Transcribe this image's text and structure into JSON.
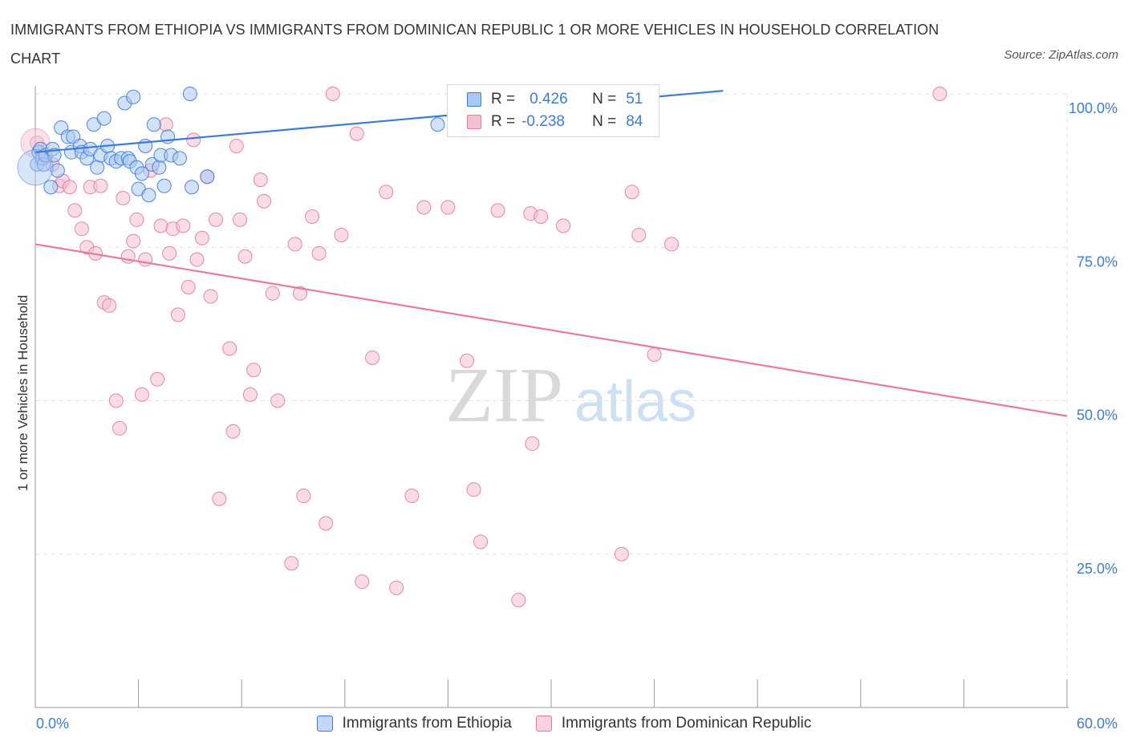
{
  "title": "IMMIGRANTS FROM ETHIOPIA VS IMMIGRANTS FROM DOMINICAN REPUBLIC 1 OR MORE VEHICLES IN HOUSEHOLD CORRELATION CHART",
  "source": "Source: ZipAtlas.com",
  "watermark": {
    "zip": "ZIP",
    "atlas": "atlas"
  },
  "colors": {
    "blue": "#3d7bd9",
    "blue_fill": "#a9c8f2",
    "pink": "#e87aa2",
    "pink_fill": "#f5bfd2",
    "grid": "#e3e3e3",
    "tick_label": "#3d7bd9"
  },
  "legend": {
    "r_label": "R =",
    "n_label": "N =",
    "series1": {
      "r": "0.426",
      "n": "51"
    },
    "series2": {
      "r": "-0.238",
      "n": "84"
    }
  },
  "bottom_legend": {
    "series1": "Immigrants from Ethiopia",
    "series2": "Immigrants from Dominican Republic"
  },
  "chart_data": {
    "type": "scatter",
    "title": "IMMIGRANTS FROM ETHIOPIA VS IMMIGRANTS FROM DOMINICAN REPUBLIC 1 OR MORE VEHICLES IN HOUSEHOLD CORRELATION CHART",
    "xlabel": "",
    "ylabel": "1 or more Vehicles in Household",
    "xlim": [
      0,
      60
    ],
    "ylim": [
      0,
      100
    ],
    "x_tick_labels": [
      {
        "value": 0,
        "label": "0.0%"
      },
      {
        "value": 60,
        "label": "60.0%"
      }
    ],
    "y_tick_labels": [
      {
        "value": 100,
        "label": "100.0%"
      },
      {
        "value": 75,
        "label": "75.0%"
      },
      {
        "value": 50,
        "label": "50.0%"
      },
      {
        "value": 25,
        "label": "25.0%"
      }
    ],
    "series": [
      {
        "name": "Immigrants from Ethiopia",
        "color": "#3d7bd9",
        "trend": {
          "x": [
            0,
            40
          ],
          "y": [
            90.5,
            100.5
          ]
        },
        "points": [
          [
            0.1,
            88.5
          ],
          [
            0.2,
            90.5
          ],
          [
            0.3,
            91.0
          ],
          [
            0.4,
            89.5
          ],
          [
            0.5,
            88.5
          ],
          [
            0.6,
            90.0
          ],
          [
            0.9,
            84.8
          ],
          [
            1.0,
            91.0
          ],
          [
            1.1,
            90.0
          ],
          [
            1.3,
            87.5
          ],
          [
            1.5,
            94.5
          ],
          [
            1.9,
            93.0
          ],
          [
            2.1,
            90.5
          ],
          [
            2.2,
            93.0
          ],
          [
            2.6,
            91.5
          ],
          [
            2.7,
            90.5
          ],
          [
            3.0,
            89.5
          ],
          [
            3.2,
            91.0
          ],
          [
            3.4,
            95.0
          ],
          [
            3.6,
            88.0
          ],
          [
            3.8,
            90.0
          ],
          [
            4.0,
            96.0
          ],
          [
            4.2,
            91.5
          ],
          [
            4.4,
            89.5
          ],
          [
            4.7,
            89.0
          ],
          [
            5.0,
            89.5
          ],
          [
            5.2,
            98.5
          ],
          [
            5.4,
            89.5
          ],
          [
            5.5,
            89.0
          ],
          [
            5.7,
            99.5
          ],
          [
            5.9,
            88.0
          ],
          [
            6.0,
            84.5
          ],
          [
            6.2,
            87.0
          ],
          [
            6.4,
            91.5
          ],
          [
            6.6,
            83.5
          ],
          [
            6.8,
            88.5
          ],
          [
            6.9,
            95.0
          ],
          [
            7.2,
            88.0
          ],
          [
            7.3,
            90.0
          ],
          [
            7.5,
            85.0
          ],
          [
            7.7,
            93.0
          ],
          [
            7.9,
            90.0
          ],
          [
            8.4,
            89.5
          ],
          [
            9.1,
            84.8
          ],
          [
            9.0,
            100.0
          ],
          [
            10.0,
            86.5
          ],
          [
            23.4,
            95.0
          ]
        ]
      },
      {
        "name": "Immigrants from Dominican Republic",
        "color": "#e87aa2",
        "trend": {
          "x": [
            0,
            60
          ],
          "y": [
            75.5,
            47.5
          ]
        },
        "points": [
          [
            0.1,
            92.0
          ],
          [
            0.5,
            89.5
          ],
          [
            1.0,
            88.5
          ],
          [
            1.4,
            85.0
          ],
          [
            1.6,
            85.8
          ],
          [
            2.0,
            84.8
          ],
          [
            2.3,
            81.0
          ],
          [
            2.7,
            78.0
          ],
          [
            3.0,
            75.0
          ],
          [
            3.2,
            84.8
          ],
          [
            3.5,
            74.0
          ],
          [
            3.8,
            85.0
          ],
          [
            4.0,
            66.0
          ],
          [
            4.3,
            65.5
          ],
          [
            4.7,
            50.0
          ],
          [
            4.9,
            45.5
          ],
          [
            5.1,
            83.0
          ],
          [
            5.4,
            73.5
          ],
          [
            5.7,
            76.0
          ],
          [
            5.9,
            79.5
          ],
          [
            6.2,
            51.0
          ],
          [
            6.4,
            73.0
          ],
          [
            6.7,
            87.5
          ],
          [
            7.1,
            53.5
          ],
          [
            7.3,
            78.5
          ],
          [
            7.6,
            95.0
          ],
          [
            7.8,
            74.0
          ],
          [
            8.0,
            78.0
          ],
          [
            8.3,
            64.0
          ],
          [
            8.6,
            78.5
          ],
          [
            8.9,
            68.5
          ],
          [
            9.2,
            92.5
          ],
          [
            9.4,
            73.0
          ],
          [
            9.7,
            76.5
          ],
          [
            10.0,
            86.5
          ],
          [
            10.2,
            67.0
          ],
          [
            10.5,
            79.5
          ],
          [
            10.7,
            34.0
          ],
          [
            11.3,
            58.5
          ],
          [
            11.5,
            45.0
          ],
          [
            11.7,
            91.5
          ],
          [
            11.9,
            79.5
          ],
          [
            12.2,
            73.5
          ],
          [
            12.5,
            51.0
          ],
          [
            12.7,
            55.0
          ],
          [
            13.1,
            86.0
          ],
          [
            13.3,
            82.5
          ],
          [
            13.8,
            67.5
          ],
          [
            14.1,
            50.0
          ],
          [
            14.9,
            23.5
          ],
          [
            15.1,
            75.5
          ],
          [
            15.4,
            67.5
          ],
          [
            15.6,
            34.5
          ],
          [
            16.1,
            80.0
          ],
          [
            16.5,
            74.0
          ],
          [
            16.9,
            30.0
          ],
          [
            17.3,
            100.0
          ],
          [
            17.8,
            77.0
          ],
          [
            18.7,
            93.5
          ],
          [
            19.0,
            20.5
          ],
          [
            19.6,
            57.0
          ],
          [
            20.4,
            84.0
          ],
          [
            21.0,
            19.5
          ],
          [
            21.9,
            34.5
          ],
          [
            22.6,
            81.5
          ],
          [
            24.0,
            81.5
          ],
          [
            25.1,
            56.5
          ],
          [
            25.5,
            35.5
          ],
          [
            25.9,
            27.0
          ],
          [
            26.9,
            81.0
          ],
          [
            28.1,
            17.5
          ],
          [
            28.8,
            80.5
          ],
          [
            28.9,
            43.0
          ],
          [
            29.4,
            80.0
          ],
          [
            30.7,
            78.5
          ],
          [
            34.1,
            25.0
          ],
          [
            34.7,
            84.0
          ],
          [
            35.1,
            77.0
          ],
          [
            36.0,
            57.5
          ],
          [
            37.0,
            75.5
          ],
          [
            52.6,
            100.0
          ]
        ]
      }
    ]
  }
}
